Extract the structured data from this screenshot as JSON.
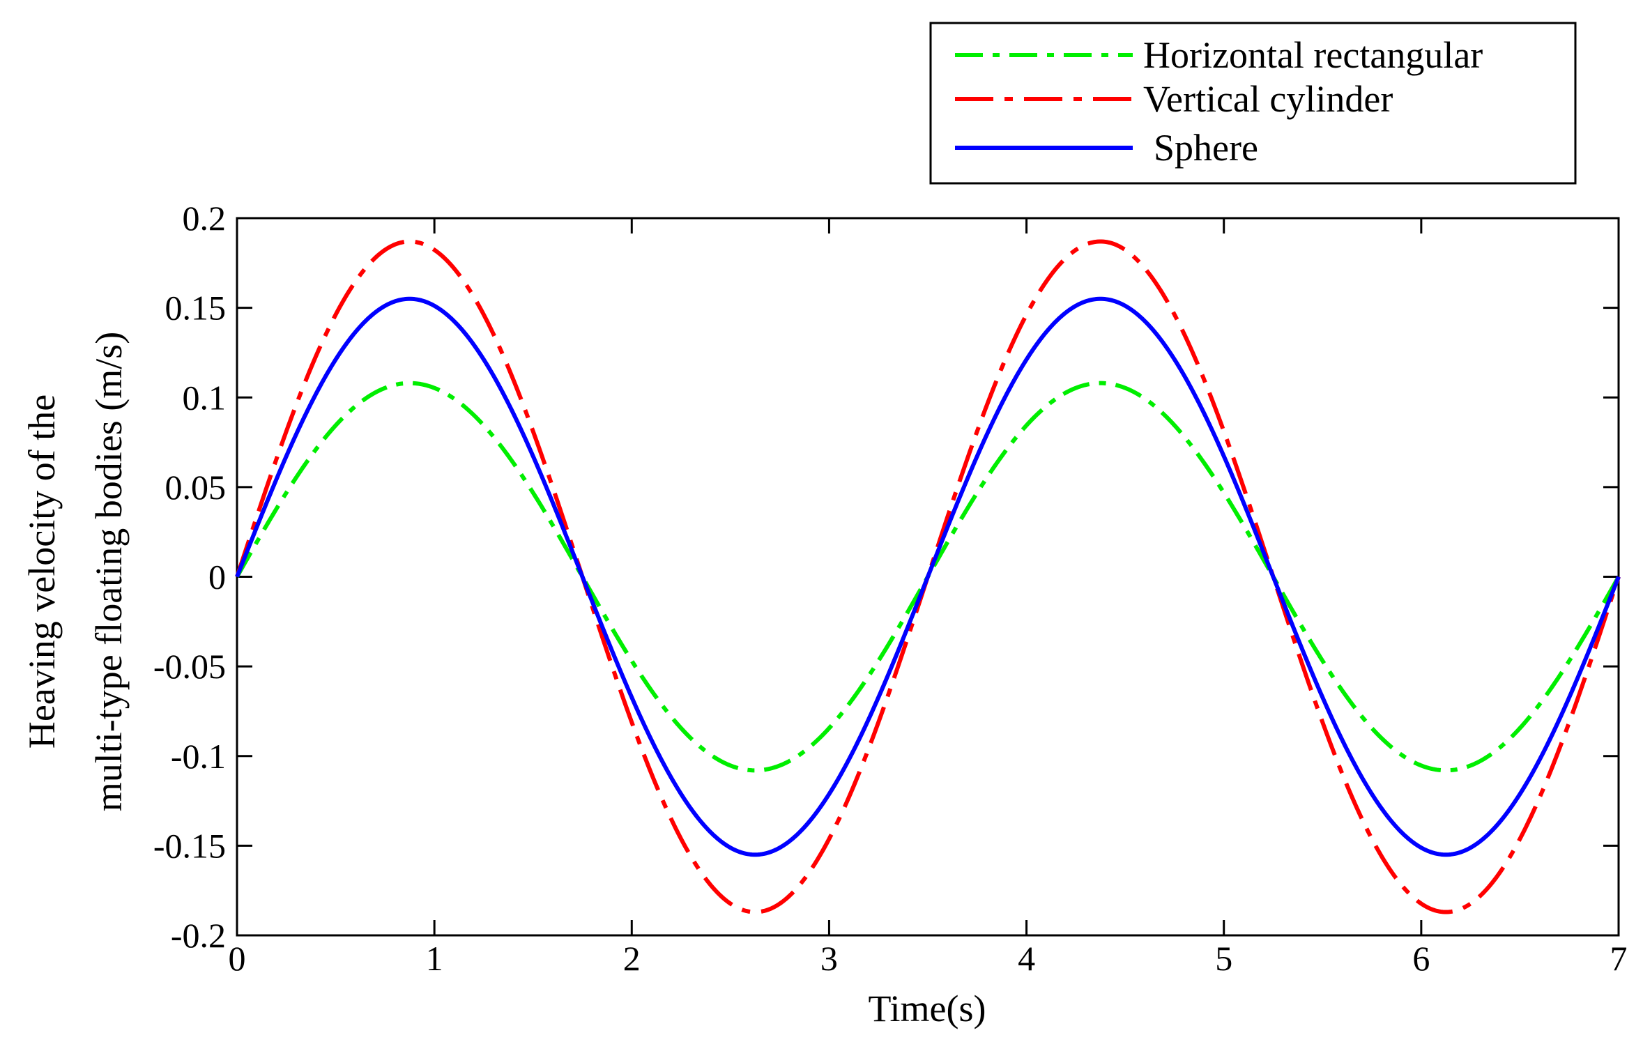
{
  "chart_data": {
    "type": "line",
    "title": "",
    "xlabel": "Time(s)",
    "ylabel_lines": [
      "Heaving velocity of the",
      "multi-type floating bodies (m/s)"
    ],
    "xlim": [
      0,
      7
    ],
    "ylim": [
      -0.2,
      0.2
    ],
    "xticks": [
      0,
      1,
      2,
      3,
      4,
      5,
      6,
      7
    ],
    "xtick_labels": [
      "0",
      "1",
      "2",
      "3",
      "4",
      "5",
      "6",
      "7"
    ],
    "yticks": [
      0.2,
      0.15,
      0.1,
      0.05,
      0,
      -0.05,
      -0.1,
      -0.15,
      -0.2
    ],
    "ytick_labels": [
      "0.2",
      "0.15",
      "0.1",
      "0.05",
      "0",
      "-0.05",
      "-0.1",
      "-0.15",
      "-0.2"
    ],
    "grid": false,
    "legend_position": "top-right, above plot",
    "period_s": 3.5,
    "series": [
      {
        "name": "Horizontal rectangular",
        "amplitude": 0.108,
        "color": "#00ee00",
        "style": "dash-dot"
      },
      {
        "name": "Vertical cylinder",
        "amplitude": 0.187,
        "color": "#ff0000",
        "style": "long-dash-dot"
      },
      {
        "name": "Sphere",
        "amplitude": 0.155,
        "color": "#0000ff",
        "style": "solid"
      }
    ]
  }
}
